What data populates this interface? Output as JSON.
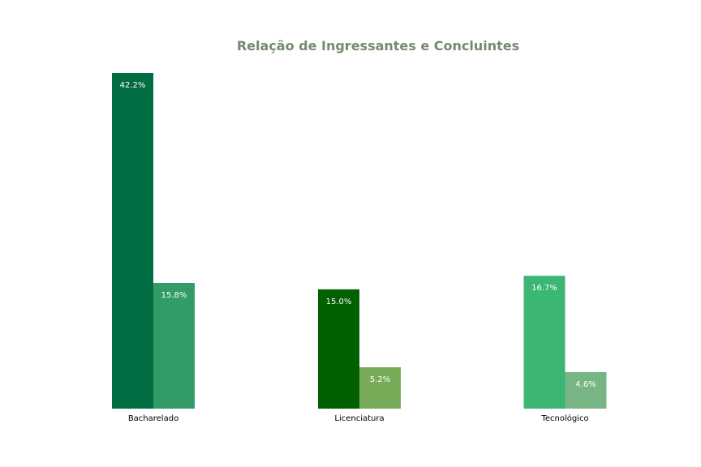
{
  "chart_data": {
    "type": "bar",
    "title": "Relação de Ingressantes e Concluintes",
    "xlabel": "",
    "ylabel": "",
    "ylim": [
      0,
      44.3
    ],
    "grid": false,
    "legend": "none",
    "categories": [
      "Bacharelado",
      "Licenciatura",
      "Tecnológico"
    ],
    "series": [
      {
        "values": [
          42.2,
          15.0,
          16.7
        ],
        "colors": [
          "#026c42",
          "#016000",
          "#3bb673"
        ]
      },
      {
        "values": [
          15.8,
          5.2,
          4.6
        ],
        "colors": [
          "#339b66",
          "#77ab57",
          "#77b584"
        ]
      }
    ],
    "value_labels": [
      [
        "42.2%",
        "15.0%",
        "16.7%"
      ],
      [
        "15.8%",
        "5.2%",
        "4.6%"
      ]
    ]
  },
  "colors": {
    "title": "#748b6e",
    "value_label": "#ffffff",
    "tick_label": "#000000",
    "background": "#ffffff"
  }
}
